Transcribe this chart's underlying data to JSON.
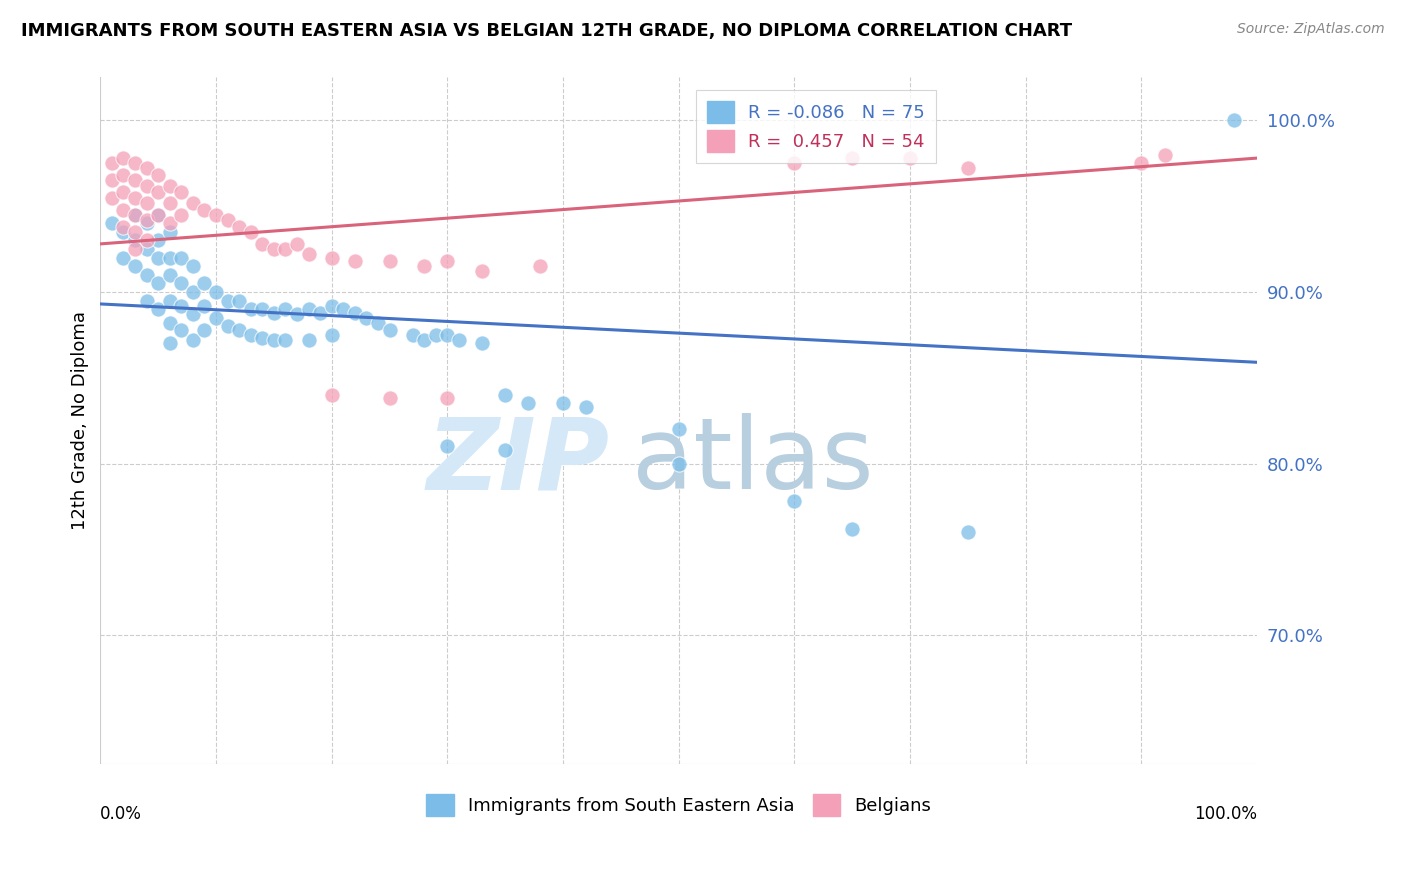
{
  "title": "IMMIGRANTS FROM SOUTH EASTERN ASIA VS BELGIAN 12TH GRADE, NO DIPLOMA CORRELATION CHART",
  "source": "Source: ZipAtlas.com",
  "ylabel": "12th Grade, No Diploma",
  "xlim": [
    0.0,
    1.0
  ],
  "ylim": [
    0.625,
    1.025
  ],
  "ytick_values_shown": [
    0.7,
    0.8,
    0.9,
    1.0
  ],
  "legend_blue_r": "-0.086",
  "legend_blue_n": "75",
  "legend_pink_r": "0.457",
  "legend_pink_n": "54",
  "blue_color": "#7bbde8",
  "pink_color": "#f4a0b8",
  "blue_line_color": "#4472c4",
  "pink_line_color": "#d9637a",
  "blue_line_x0": 0.0,
  "blue_line_y0": 0.893,
  "blue_line_x1": 1.0,
  "blue_line_y1": 0.859,
  "pink_line_x0": 0.0,
  "pink_line_y0": 0.928,
  "pink_line_x1": 1.0,
  "pink_line_y1": 0.978,
  "blue_scatter_x": [
    0.01,
    0.02,
    0.02,
    0.03,
    0.03,
    0.03,
    0.04,
    0.04,
    0.04,
    0.04,
    0.05,
    0.05,
    0.05,
    0.05,
    0.05,
    0.06,
    0.06,
    0.06,
    0.06,
    0.06,
    0.06,
    0.07,
    0.07,
    0.07,
    0.07,
    0.08,
    0.08,
    0.08,
    0.08,
    0.09,
    0.09,
    0.09,
    0.1,
    0.1,
    0.11,
    0.11,
    0.12,
    0.12,
    0.13,
    0.13,
    0.14,
    0.14,
    0.15,
    0.15,
    0.16,
    0.16,
    0.17,
    0.18,
    0.18,
    0.19,
    0.2,
    0.2,
    0.21,
    0.22,
    0.23,
    0.24,
    0.25,
    0.27,
    0.28,
    0.29,
    0.3,
    0.31,
    0.33,
    0.35,
    0.37,
    0.4,
    0.42,
    0.3,
    0.35,
    0.5,
    0.6,
    0.65,
    0.75,
    0.98,
    0.5
  ],
  "blue_scatter_y": [
    0.94,
    0.935,
    0.92,
    0.945,
    0.93,
    0.915,
    0.94,
    0.925,
    0.91,
    0.895,
    0.945,
    0.93,
    0.92,
    0.905,
    0.89,
    0.935,
    0.92,
    0.91,
    0.895,
    0.882,
    0.87,
    0.92,
    0.905,
    0.892,
    0.878,
    0.915,
    0.9,
    0.887,
    0.872,
    0.905,
    0.892,
    0.878,
    0.9,
    0.885,
    0.895,
    0.88,
    0.895,
    0.878,
    0.89,
    0.875,
    0.89,
    0.873,
    0.888,
    0.872,
    0.89,
    0.872,
    0.887,
    0.89,
    0.872,
    0.888,
    0.892,
    0.875,
    0.89,
    0.888,
    0.885,
    0.882,
    0.878,
    0.875,
    0.872,
    0.875,
    0.875,
    0.872,
    0.87,
    0.84,
    0.835,
    0.835,
    0.833,
    0.81,
    0.808,
    0.82,
    0.778,
    0.762,
    0.76,
    1.0,
    0.8
  ],
  "pink_scatter_x": [
    0.01,
    0.01,
    0.01,
    0.02,
    0.02,
    0.02,
    0.02,
    0.02,
    0.03,
    0.03,
    0.03,
    0.03,
    0.03,
    0.03,
    0.04,
    0.04,
    0.04,
    0.04,
    0.04,
    0.05,
    0.05,
    0.05,
    0.06,
    0.06,
    0.06,
    0.07,
    0.07,
    0.08,
    0.09,
    0.1,
    0.11,
    0.12,
    0.13,
    0.14,
    0.15,
    0.16,
    0.17,
    0.18,
    0.2,
    0.22,
    0.25,
    0.28,
    0.3,
    0.33,
    0.38,
    0.2,
    0.25,
    0.3,
    0.6,
    0.65,
    0.7,
    0.75,
    0.9,
    0.92
  ],
  "pink_scatter_y": [
    0.975,
    0.965,
    0.955,
    0.978,
    0.968,
    0.958,
    0.948,
    0.938,
    0.975,
    0.965,
    0.955,
    0.945,
    0.935,
    0.925,
    0.972,
    0.962,
    0.952,
    0.942,
    0.93,
    0.968,
    0.958,
    0.945,
    0.962,
    0.952,
    0.94,
    0.958,
    0.945,
    0.952,
    0.948,
    0.945,
    0.942,
    0.938,
    0.935,
    0.928,
    0.925,
    0.925,
    0.928,
    0.922,
    0.92,
    0.918,
    0.918,
    0.915,
    0.918,
    0.912,
    0.915,
    0.84,
    0.838,
    0.838,
    0.975,
    0.978,
    0.978,
    0.972,
    0.975,
    0.98
  ]
}
